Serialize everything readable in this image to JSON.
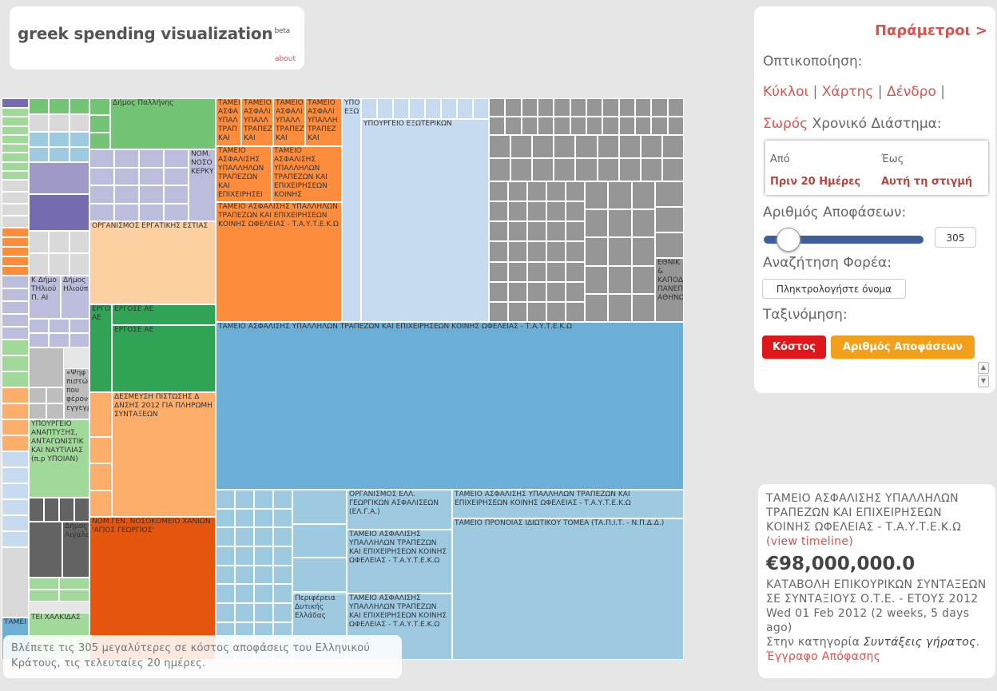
{
  "header": {
    "title": "greek spending visualization",
    "beta": "beta",
    "about": "about"
  },
  "panel": {
    "title": "Παράμετροι >",
    "visualization_label": "Οπτικοποίηση:",
    "views": [
      "Κύκλοι",
      "Χάρτης",
      "Δένδρο",
      "Σωρός"
    ],
    "period_label": "Χρονικό Διάστημα:",
    "from_label": "Από",
    "to_label": "Έως",
    "from_value": "Πριν 20 Ημέρες",
    "to_value": "Αυτή τη στιγμή",
    "count_label": "Αριθμός Αποφάσεων:",
    "count_value": "305",
    "count_fraction": 0.1,
    "search_label": "Αναζήτηση Φορέα:",
    "search_placeholder": "Πληκτρολογήστε όνομα",
    "sort_label": "Ταξινόμηση:",
    "sort_cost": "Κόστος",
    "sort_count": "Αριθμός Αποφάσεων"
  },
  "info": {
    "text": "Βλέπετε τις 305 μεγαλύτερες σε κόστος αποφάσεις του Ελληνικού Κράτους, τις τελευταίες 20 ημέρες."
  },
  "detail": {
    "org": "ΤΑΜΕΙΟ ΑΣΦΑΛΙΣΗΣ ΥΠΑΛΛΗΛΩΝ ΤΡΑΠΕΖΩΝ ΚΑΙ ΕΠΙΧΕΙΡΗΣΕΩΝ ΚΟΙΝΗΣ ΩΦΕΛΕΙΑΣ - Τ.Α.Υ.Τ.Ε.Κ.Ω",
    "timeline": "(view timeline)",
    "amount": "€98,000,000.0",
    "description": "ΚΑΤΑΒΟΛΗ ΕΠΙΚΟΥΡΙΚΩΝ ΣΥΝΤΑΞΕΩΝ ΣΕ ΣΥΝΤΑΞΙΟΥΣ Ο.Τ.Ε. - ΕΤΟΥΣ 2012",
    "date": "Wed 01 Feb 2012 (2 weeks, 5 days ago)",
    "category_prefix": "Στην κατηγορία",
    "category": "Συντάξεις γήρατος",
    "document": "Έγγραφο Απόφασης"
  },
  "colors": {
    "blue_main": "#6baed6",
    "light_blue": "#9ecae1",
    "pale_blue": "#c6dbef",
    "orange": "#fd8d3c",
    "light_orange": "#fdae6b",
    "pale_orange": "#fdd0a2",
    "dark_orange": "#e6550d",
    "green": "#31a354",
    "light_green": "#74c476",
    "pale_green": "#a1d99b",
    "purple": "#756bb1",
    "light_purple": "#9e9ac8",
    "pale_purple": "#bcbddc",
    "gray": "#969696",
    "dark_gray": "#636363",
    "light_gray": "#bdbdbd",
    "pale_gray": "#d9d9d9",
    "red": "#d9534f"
  },
  "treemap_labels": [
    "Δήμος Παλλήνης",
    "ΝΟΜ. ΝΟΣΟ ΚΕΡΚΥ",
    "ΟΡΓΑΝΙΣΜΟΣ ΕΡΓΑΤΙΚΗΣ ΕΣΤΙΑΣ",
    "ΤΑΜΕΙ ΑΣΦΑ ΥΠΑΛ ΤΡΑΠ ΚΑΙ",
    "ΤΑΜΕΙΟ ΑΣΦΑΛΙ ΥΠΑΛΛ ΤΡΑΠΕΖ ΚΑΙ",
    "ΤΑΜΕΙΟ ΑΣΦΑΛΙ ΥΠΑΛΛ ΤΡΑΠΕΖ ΚΑΙ",
    "ΤΑΜΕΙΟ ΑΣΦΑΛΙ ΥΠΑΛΛΗ ΤΡΑΠΕΖ ΚΑΙ",
    "ΤΑΜΕΙΟ ΑΣΦΑΛΙΣΗΣ ΥΠΑΛΛΗΛΩΝ ΤΡΑΠΕΖΩΝ ΚΑΙ ΕΠΙΧΕΙΡΗΣΕΙ",
    "ΤΑΜΕΙΟ ΑΣΦΑΛΙΣΗΣ ΥΠΑΛΛΗΛΩΝ ΤΡΑΠΕΖΩΝ ΚΑΙ ΕΠΙΧΕΙΡΗΣΕΩΝ ΚΟΙΝΗΣ",
    "ΤΑΜΕΙΟ ΑΣΦΑΛΙΣΗΣ ΥΠΑΛΛΗΛΩΝ ΤΡΑΠΕΖΩΝ ΚΑΙ ΕΠΙΧΕΙΡΗΣΕΩΝ ΚΟΙΝΗΣ ΩΦΕΛΕΙΑΣ - Τ.Α.Υ.Τ.Ε.Κ.Ω",
    "ΥΠΟ ΕΞΩ",
    "ΥΠΟΥΡΓΕΙΟ ΕΞΩΤΕΡΙΚΩΝ",
    "ΕΘΝΙΚ & ΚΑΠΟΔ ΠΑΝΕΠ ΑΘΗΝΩ",
    "ΕΡΓΟΣΕ ΑΕ",
    "ΕΡΓΟΣΕ ΑΕ",
    "ΕΡΓΟ ΑΕ",
    "ΤΑΜΕΙΟ ΑΣΦΑΛΙΣΗΣ ΥΠΑΛΛΗΛΩΝ ΤΡΑΠΕΖΩΝ ΚΑΙ ΕΠΙΧΕΙΡΗΣΕΩΝ ΚΟΙΝΗΣ ΩΦΕΛΕΙΑΣ - Τ.Α.Υ.Τ.Ε.Κ.Ω",
    "Κ Δήμο ΤΗλιού Π. ΑΙ",
    "Δήμος Ηλιούπ",
    "«Ψηφ πιστώ που φέρον εγγεγρ",
    "ΔΕΣΜΕΥΣΗ ΠΙΣΤΩΣΗΣ Δ ΔΝΣΗΣ 2012 ΓΙΑ ΠΛΗΡΩΜΗ ΣΥΝΤΑΞΕΩΝ",
    "ΥΠΟΥΡΓΕΙΟ ΑΝΑΠΤΥΞΗΣ, ΑΝΤΑΓΩΝΙΣΤΙΚ ΚΑΙ ΝΑΥΤΙΛΙΑΣ (π.ρ ΥΠΟΙΑΝ)",
    "ΟΡΓΑΝΙΣΜΟΣ ΕΛΛ. ΓΕΩΡΓΙΚΩΝ ΑΣΦΑΛΙΣΕΩΝ (ΕΛ.Γ.Α.)",
    "ΤΑΜΕΙΟ ΑΣΦΑΛΙΣΗΣ ΥΠΑΛΛΗΛΩΝ ΤΡΑΠΕΖΩΝ ΚΑΙ ΕΠΙΧΕΙΡΗΣΕΩΝ ΚΟΙΝΗΣ ΩΦΕΛΕΙΑΣ - Τ.Α.Υ.Τ.Ε.Κ.Ω",
    "ΤΑΜΕΙΟ ΠΡΟΝΟΙΑΣ ΙΔΙΩΤΙΚΟΥ ΤΟΜΕΑ (ΤΑ.Π.Ι.Τ. - Ν.Π.Δ.Δ.)",
    "ΤΑΜΕΙΟ ΑΣΦΑΛΙΣΗΣ ΥΠΑΛΛΗΛΩΝ ΤΡΑΠΕΖΩΝ ΚΑΙ ΕΠΙΧΕΙΡΗΣΕΩΝ ΚΟΙΝΗΣ ΩΦΕΛΕΙΑΣ - Τ.Α.Υ.Τ.Ε.Κ.Ω",
    "ΤΑΜΕΙΟ ΑΣΦΑΛΙΣΗΣ ΥΠΑΛΛΗΛΩΝ ΤΡΑΠΕΖΩΝ ΚΑΙ ΕΠΙΧΕΙΡΗΣΕΩΝ ΚΟΙΝΗΣ ΩΦΕΛΕΙΑΣ - Τ.Α.Υ.Τ.Ε.Κ.Ω",
    "Περιφέρεια Δυτικής Ελλάδας",
    "ΝΟΜ.ΓΕΝ. ΝΟΣΟΚΟΜΕΙΟ ΧΑΝΙΩΝ 'ΑΓΙΟΣ ΓΕΩΡΓΙΟΣ'",
    "Δήμος Αιγαλε",
    "ΤΕΙ ΧΑΛΚΙΔΑΣ",
    "ΤΑΜΕΙ"
  ]
}
